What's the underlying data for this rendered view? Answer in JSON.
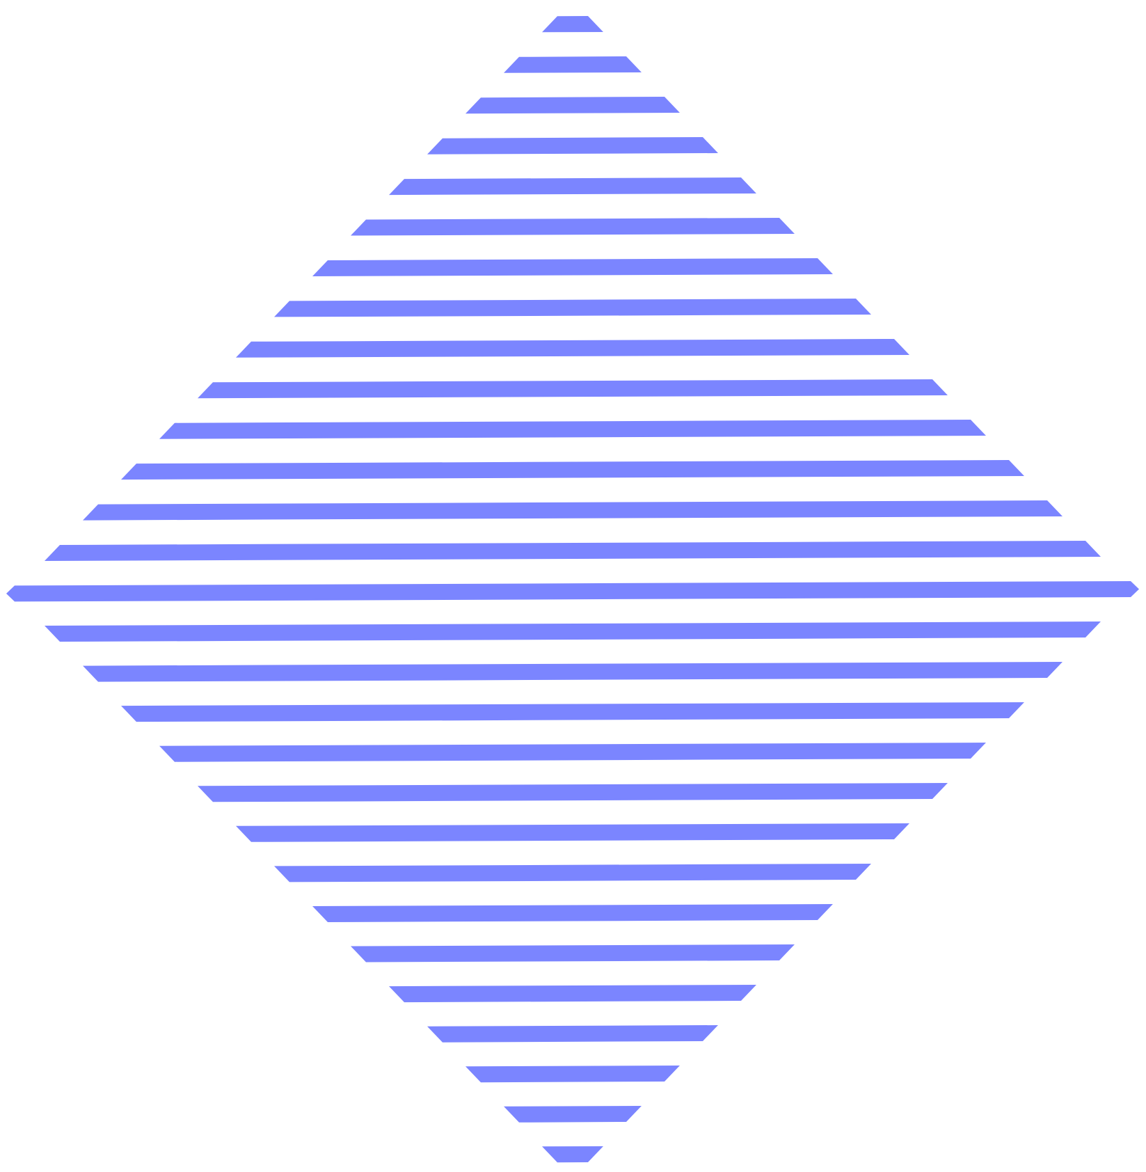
{
  "graphic": {
    "kind": "striped-diamond",
    "stripe_color": "#7B85FF",
    "background_color": "#FFFFFF",
    "stripe_count": 29
  }
}
